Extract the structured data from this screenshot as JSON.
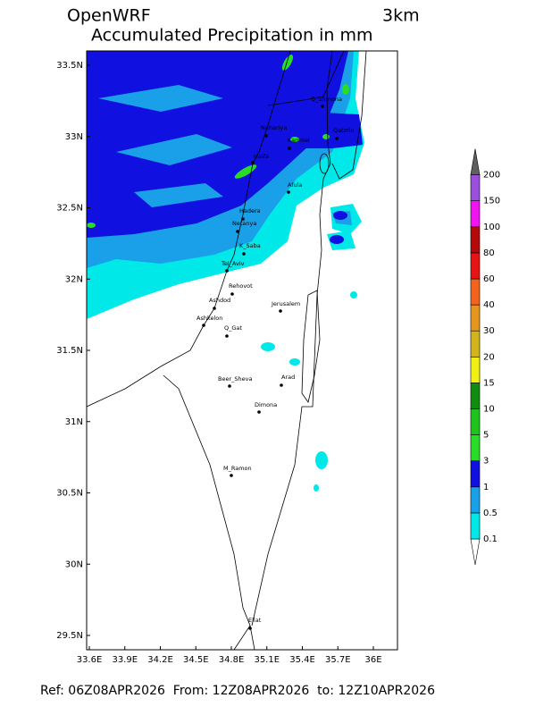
{
  "header": {
    "model": "OpenWRF",
    "resolution": "3km",
    "title": "Accumulated Precipitation in mm"
  },
  "map": {
    "xticks": [
      {
        "value": 33.6,
        "label": "33.6E"
      },
      {
        "value": 33.9,
        "label": "33.9E"
      },
      {
        "value": 34.2,
        "label": "34.2E"
      },
      {
        "value": 34.5,
        "label": "34.5E"
      },
      {
        "value": 34.8,
        "label": "34.8E"
      },
      {
        "value": 35.1,
        "label": "35.1E"
      },
      {
        "value": 35.4,
        "label": "35.4E"
      },
      {
        "value": 35.7,
        "label": "35.7E"
      },
      {
        "value": 36,
        "label": "36E"
      }
    ],
    "yticks": [
      {
        "value": 33.5,
        "label": "33.5N"
      },
      {
        "value": 33,
        "label": "33N"
      },
      {
        "value": 32.5,
        "label": "32.5N"
      },
      {
        "value": 32,
        "label": "32N"
      },
      {
        "value": 31.5,
        "label": "31.5N"
      },
      {
        "value": 31,
        "label": "31N"
      },
      {
        "value": 30.5,
        "label": "30.5N"
      },
      {
        "value": 30,
        "label": "30N"
      },
      {
        "value": 29.5,
        "label": "29.5N"
      }
    ]
  },
  "cities": [
    "Q_Shmona",
    "Nahariya",
    "Karmiel",
    "Qatzrin",
    "Haifa",
    "Afula",
    "Hadera",
    "Netanya",
    "K_Saba",
    "Tel_Aviv",
    "Rehovot",
    "Ashdod",
    "Jerusalem",
    "Ashkelon",
    "Q_Gat",
    "Beer_Sheva",
    "Arad",
    "Dimona",
    "M_Ramon",
    "Eilat"
  ],
  "colorbar": {
    "levels": [
      0.1,
      0.5,
      1,
      3,
      5,
      10,
      15,
      20,
      30,
      40,
      60,
      80,
      100,
      150,
      200
    ],
    "colors": [
      "#00e8e8",
      "#1aa0e8",
      "#1010e0",
      "#28dc28",
      "#1ec31e",
      "#108c10",
      "#f0f014",
      "#d2b41e",
      "#e6961e",
      "#f0641e",
      "#e61414",
      "#b40a0a",
      "#f014f0",
      "#9a50dc"
    ],
    "below_color": "#ffffff",
    "above_color": "#606060"
  },
  "footer": "Ref: 06Z08APR2026  From: 12Z08APR2026  to: 12Z10APR2026"
}
